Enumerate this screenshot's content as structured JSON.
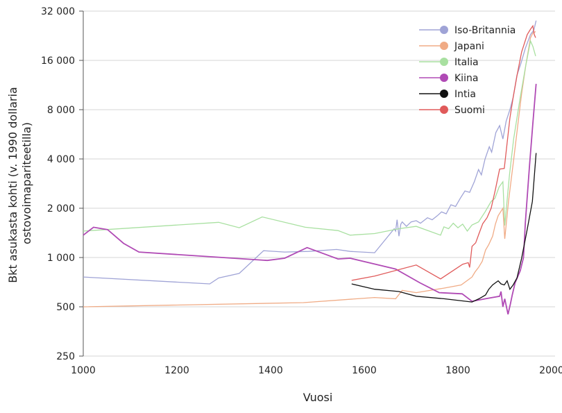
{
  "chart_data": {
    "type": "line",
    "title": "",
    "xlabel": "Vuosi",
    "ylabel": [
      "Bkt asukasta kohti (v. 1990 dollaria",
      "ostovoimapariteetilla)"
    ],
    "xlim": [
      1000,
      2000
    ],
    "ylim": [
      250,
      32000
    ],
    "yscale": "log2",
    "grid": "horizontal",
    "legend_placement": "top-right",
    "xticks": [
      1000,
      1200,
      1400,
      1600,
      1800,
      2000
    ],
    "yticks": [
      250,
      500,
      1000,
      2000,
      4000,
      8000,
      16000,
      32000
    ],
    "ytick_labels": [
      "250",
      "500",
      "1 000",
      "2 000",
      "4 000",
      "8 000",
      "16 000",
      "32 000"
    ],
    "series": [
      {
        "name": "Iso-Britannia",
        "color": "#9fa3d6",
        "points": [
          [
            1000,
            760
          ],
          [
            1270,
            690
          ],
          [
            1289,
            750
          ],
          [
            1333,
            800
          ],
          [
            1385,
            1100
          ],
          [
            1430,
            1080
          ],
          [
            1481,
            1090
          ],
          [
            1541,
            1120
          ],
          [
            1570,
            1090
          ],
          [
            1622,
            1070
          ],
          [
            1664,
            1500
          ],
          [
            1667,
            1450
          ],
          [
            1670,
            1700
          ],
          [
            1674,
            1350
          ],
          [
            1678,
            1600
          ],
          [
            1681,
            1650
          ],
          [
            1690,
            1550
          ],
          [
            1700,
            1650
          ],
          [
            1711,
            1680
          ],
          [
            1720,
            1620
          ],
          [
            1735,
            1750
          ],
          [
            1745,
            1700
          ],
          [
            1756,
            1800
          ],
          [
            1765,
            1900
          ],
          [
            1775,
            1850
          ],
          [
            1785,
            2100
          ],
          [
            1795,
            2050
          ],
          [
            1805,
            2300
          ],
          [
            1815,
            2550
          ],
          [
            1825,
            2500
          ],
          [
            1835,
            2900
          ],
          [
            1844,
            3450
          ],
          [
            1850,
            3200
          ],
          [
            1858,
            4000
          ],
          [
            1867,
            4750
          ],
          [
            1872,
            4400
          ],
          [
            1881,
            5800
          ],
          [
            1889,
            6400
          ],
          [
            1896,
            5300
          ],
          [
            1903,
            6800
          ],
          [
            1911,
            8000
          ],
          [
            1918,
            9500
          ],
          [
            1926,
            13000
          ],
          [
            1935,
            15500
          ],
          [
            1944,
            19000
          ],
          [
            1955,
            23000
          ],
          [
            1962,
            24500
          ],
          [
            1967,
            28000
          ]
        ]
      },
      {
        "name": "Japani",
        "color": "#f0ab85",
        "points": [
          [
            1000,
            500
          ],
          [
            1470,
            530
          ],
          [
            1622,
            570
          ],
          [
            1667,
            560
          ],
          [
            1681,
            630
          ],
          [
            1711,
            610
          ],
          [
            1770,
            650
          ],
          [
            1807,
            680
          ],
          [
            1830,
            760
          ],
          [
            1837,
            820
          ],
          [
            1844,
            870
          ],
          [
            1852,
            950
          ],
          [
            1859,
            1110
          ],
          [
            1866,
            1200
          ],
          [
            1874,
            1350
          ],
          [
            1880,
            1600
          ],
          [
            1886,
            1800
          ],
          [
            1896,
            2000
          ],
          [
            1900,
            1300
          ],
          [
            1908,
            2200
          ],
          [
            1919,
            3950
          ],
          [
            1928,
            6500
          ],
          [
            1936,
            10000
          ],
          [
            1945,
            15000
          ],
          [
            1955,
            22000
          ],
          [
            1960,
            23500
          ],
          [
            1966,
            24000
          ]
        ]
      },
      {
        "name": "Italia",
        "color": "#a8e0a0",
        "points": [
          [
            1000,
            1450
          ],
          [
            1289,
            1640
          ],
          [
            1333,
            1520
          ],
          [
            1382,
            1770
          ],
          [
            1474,
            1530
          ],
          [
            1544,
            1460
          ],
          [
            1570,
            1370
          ],
          [
            1622,
            1400
          ],
          [
            1674,
            1500
          ],
          [
            1711,
            1550
          ],
          [
            1763,
            1370
          ],
          [
            1770,
            1540
          ],
          [
            1780,
            1500
          ],
          [
            1790,
            1620
          ],
          [
            1800,
            1520
          ],
          [
            1810,
            1600
          ],
          [
            1820,
            1450
          ],
          [
            1830,
            1580
          ],
          [
            1844,
            1650
          ],
          [
            1858,
            1900
          ],
          [
            1871,
            2200
          ],
          [
            1879,
            2300
          ],
          [
            1888,
            2700
          ],
          [
            1896,
            2900
          ],
          [
            1900,
            1570
          ],
          [
            1910,
            3200
          ],
          [
            1919,
            5300
          ],
          [
            1933,
            9500
          ],
          [
            1945,
            15000
          ],
          [
            1955,
            21000
          ],
          [
            1960,
            19500
          ],
          [
            1966,
            17000
          ]
        ]
      },
      {
        "name": "Kiina",
        "color": "#b04ab5",
        "points": [
          [
            1000,
            1370
          ],
          [
            1022,
            1530
          ],
          [
            1052,
            1480
          ],
          [
            1086,
            1220
          ],
          [
            1119,
            1080
          ],
          [
            1393,
            960
          ],
          [
            1430,
            990
          ],
          [
            1478,
            1150
          ],
          [
            1544,
            980
          ],
          [
            1570,
            990
          ],
          [
            1667,
            850
          ],
          [
            1719,
            700
          ],
          [
            1760,
            610
          ],
          [
            1809,
            600
          ],
          [
            1830,
            540
          ],
          [
            1859,
            560
          ],
          [
            1889,
            580
          ],
          [
            1892,
            620
          ],
          [
            1896,
            500
          ],
          [
            1900,
            560
          ],
          [
            1907,
            450
          ],
          [
            1912,
            520
          ],
          [
            1916,
            590
          ],
          [
            1922,
            700
          ],
          [
            1933,
            830
          ],
          [
            1940,
            1000
          ],
          [
            1944,
            1640
          ],
          [
            1953,
            3700
          ],
          [
            1960,
            6600
          ],
          [
            1967,
            11500
          ]
        ]
      },
      {
        "name": "Intia",
        "color": "#111111",
        "points": [
          [
            1573,
            690
          ],
          [
            1622,
            640
          ],
          [
            1674,
            620
          ],
          [
            1711,
            580
          ],
          [
            1770,
            560
          ],
          [
            1830,
            535
          ],
          [
            1845,
            560
          ],
          [
            1859,
            590
          ],
          [
            1866,
            640
          ],
          [
            1874,
            680
          ],
          [
            1880,
            700
          ],
          [
            1886,
            720
          ],
          [
            1892,
            690
          ],
          [
            1899,
            680
          ],
          [
            1905,
            720
          ],
          [
            1911,
            640
          ],
          [
            1918,
            680
          ],
          [
            1926,
            750
          ],
          [
            1936,
            990
          ],
          [
            1948,
            1490
          ],
          [
            1959,
            2200
          ],
          [
            1967,
            4350
          ]
        ]
      },
      {
        "name": "Suomi",
        "color": "#e05a5a",
        "points": [
          [
            1573,
            725
          ],
          [
            1622,
            770
          ],
          [
            1711,
            900
          ],
          [
            1763,
            740
          ],
          [
            1810,
            910
          ],
          [
            1822,
            930
          ],
          [
            1825,
            870
          ],
          [
            1830,
            1170
          ],
          [
            1838,
            1230
          ],
          [
            1845,
            1400
          ],
          [
            1853,
            1610
          ],
          [
            1862,
            1750
          ],
          [
            1871,
            2000
          ],
          [
            1880,
            2600
          ],
          [
            1889,
            3470
          ],
          [
            1899,
            3500
          ],
          [
            1905,
            5000
          ],
          [
            1911,
            7100
          ],
          [
            1918,
            9500
          ],
          [
            1926,
            12900
          ],
          [
            1936,
            18000
          ],
          [
            1948,
            23000
          ],
          [
            1955,
            24800
          ],
          [
            1960,
            26000
          ],
          [
            1963,
            23000
          ],
          [
            1966,
            22000
          ]
        ]
      }
    ]
  }
}
